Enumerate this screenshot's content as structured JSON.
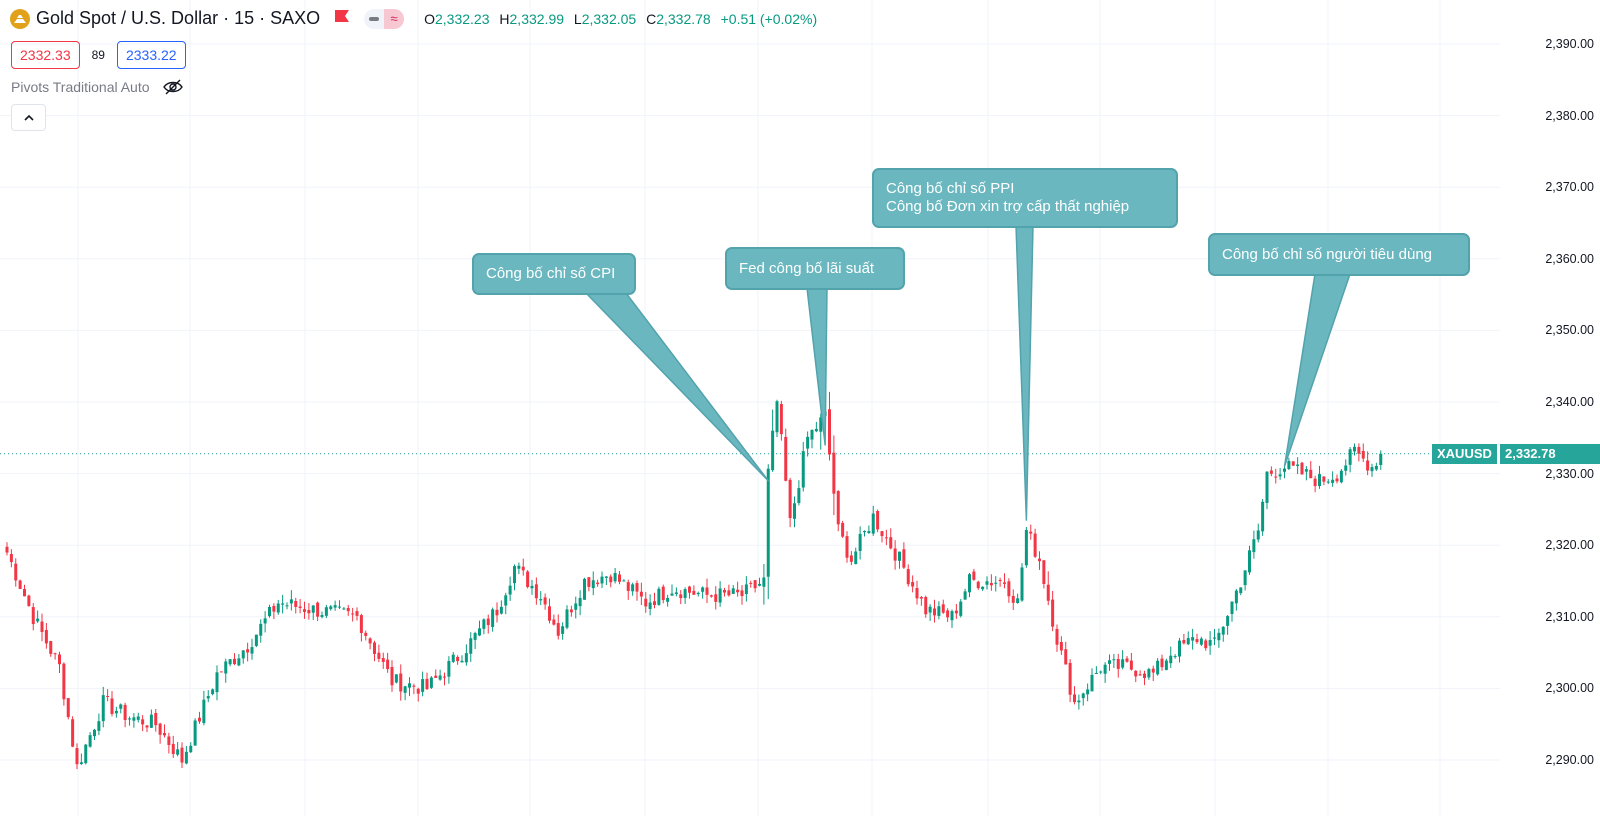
{
  "header": {
    "symbol_title": "Gold Spot / U.S. Dollar · 15 · SAXO",
    "ohlc": {
      "o_label": "O",
      "o": "2,332.23",
      "h_label": "H",
      "h": "2,332.99",
      "l_label": "L",
      "l": "2,332.05",
      "c_label": "C",
      "c": "2,332.78",
      "change": "+0.51 (+0.02%)"
    }
  },
  "quote": {
    "bid": "2332.33",
    "spread": "89",
    "ask": "2333.22"
  },
  "indicator": {
    "label": "Pivots Traditional Auto"
  },
  "price_scale": {
    "labels": [
      "2,390.00",
      "2,380.00",
      "2,370.00",
      "2,360.00",
      "2,350.00",
      "2,340.00",
      "2,330.00",
      "2,320.00",
      "2,310.00",
      "2,300.00",
      "2,290.00"
    ],
    "ticker_tag": "XAUUSD",
    "last_price_tag": "2,332.78"
  },
  "annotations": [
    {
      "text": [
        "Công bố chỉ số CPI"
      ],
      "anchor_price": 2329.0,
      "anchor_bar": 174
    },
    {
      "text": [
        "Fed công bố lãi suất"
      ],
      "anchor_price": 2334.0,
      "anchor_bar": 187
    },
    {
      "text": [
        "Công bố chỉ số PPI",
        "Công bố Đơn xin trợ cấp thất nghiệp"
      ],
      "anchor_price": 2323.5,
      "anchor_bar": 233
    },
    {
      "text": [
        "Công bố chỉ số người tiêu dùng"
      ],
      "anchor_price": 2331.0,
      "anchor_bar": 292
    }
  ],
  "colors": {
    "up": "#089981",
    "down": "#f23645",
    "callout": "#6ab7c0",
    "tag": "#26a69a",
    "bid": "#f23645",
    "ask": "#2962ff"
  },
  "chart_data": {
    "type": "candlestick",
    "symbol": "XAUUSD",
    "ylim": [
      2285,
      2395
    ],
    "last_price": 2332.78,
    "close_anchors": [
      [
        0,
        2319
      ],
      [
        6,
        2310
      ],
      [
        12,
        2303
      ],
      [
        16,
        2289
      ],
      [
        22,
        2298
      ],
      [
        28,
        2296
      ],
      [
        34,
        2295
      ],
      [
        40,
        2290
      ],
      [
        48,
        2302
      ],
      [
        55,
        2306
      ],
      [
        62,
        2312
      ],
      [
        70,
        2311
      ],
      [
        80,
        2310
      ],
      [
        88,
        2301
      ],
      [
        96,
        2300
      ],
      [
        104,
        2305
      ],
      [
        112,
        2311
      ],
      [
        116,
        2317
      ],
      [
        122,
        2313
      ],
      [
        126,
        2308
      ],
      [
        132,
        2315
      ],
      [
        138,
        2316
      ],
      [
        146,
        2312
      ],
      [
        152,
        2314
      ],
      [
        160,
        2313
      ],
      [
        168,
        2313
      ],
      [
        173,
        2315
      ],
      [
        174,
        2330
      ],
      [
        176,
        2340
      ],
      [
        179,
        2323
      ],
      [
        183,
        2335
      ],
      [
        187,
        2338
      ],
      [
        190,
        2322
      ],
      [
        193,
        2318
      ],
      [
        198,
        2324
      ],
      [
        204,
        2318
      ],
      [
        210,
        2311
      ],
      [
        216,
        2310
      ],
      [
        220,
        2315
      ],
      [
        228,
        2315
      ],
      [
        231,
        2312
      ],
      [
        233,
        2322
      ],
      [
        236,
        2318
      ],
      [
        240,
        2307
      ],
      [
        244,
        2298
      ],
      [
        250,
        2303
      ],
      [
        256,
        2303
      ],
      [
        262,
        2302
      ],
      [
        266,
        2305
      ],
      [
        272,
        2307
      ],
      [
        276,
        2306
      ],
      [
        282,
        2315
      ],
      [
        286,
        2322
      ],
      [
        288,
        2330
      ],
      [
        292,
        2331
      ],
      [
        296,
        2330
      ],
      [
        300,
        2329
      ],
      [
        304,
        2330
      ],
      [
        308,
        2333
      ],
      [
        312,
        2331
      ],
      [
        314,
        2332.78
      ]
    ]
  }
}
